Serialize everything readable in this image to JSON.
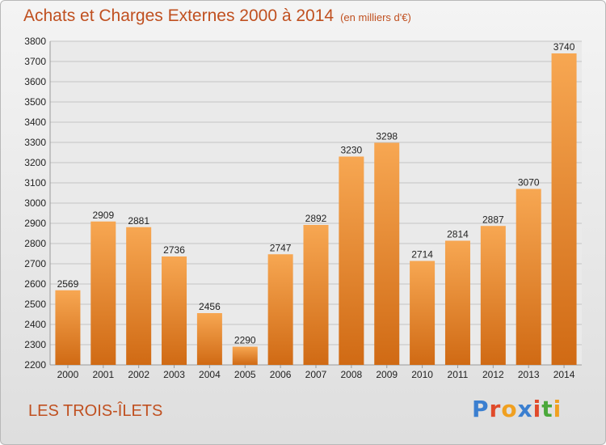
{
  "header": {
    "title": "Achats et Charges Externes 2000 à 2014",
    "unit": "(en milliers d'€)"
  },
  "footer": {
    "place": "LES TROIS-ÎLETS",
    "logo_text": "Proxiti",
    "logo_colors": [
      "#3b7fd0",
      "#e04a2a",
      "#f0a020",
      "#3b7fd0",
      "#e04a2a",
      "#4aa83a",
      "#f0a020"
    ]
  },
  "colors": {
    "bar_top": "#f7a752",
    "bar_bottom": "#d06a14",
    "grid": "#c4c4c4",
    "plot_bg": "#eaeaea"
  },
  "chart_data": {
    "type": "bar",
    "title": "Achats et Charges Externes 2000 à 2014",
    "subtitle": "(en milliers d'€)",
    "categories": [
      "2000",
      "2001",
      "2002",
      "2003",
      "2004",
      "2005",
      "2006",
      "2007",
      "2008",
      "2009",
      "2010",
      "2011",
      "2012",
      "2013",
      "2014"
    ],
    "values": [
      2569,
      2909,
      2881,
      2736,
      2456,
      2290,
      2747,
      2892,
      3230,
      3298,
      2714,
      2814,
      2887,
      3070,
      3740
    ],
    "ylim": [
      2200,
      3800
    ],
    "yticks": [
      2200,
      2300,
      2400,
      2500,
      2600,
      2700,
      2800,
      2900,
      3000,
      3100,
      3200,
      3300,
      3400,
      3500,
      3600,
      3700,
      3800
    ],
    "grid": true,
    "xlabel": "",
    "ylabel": ""
  }
}
